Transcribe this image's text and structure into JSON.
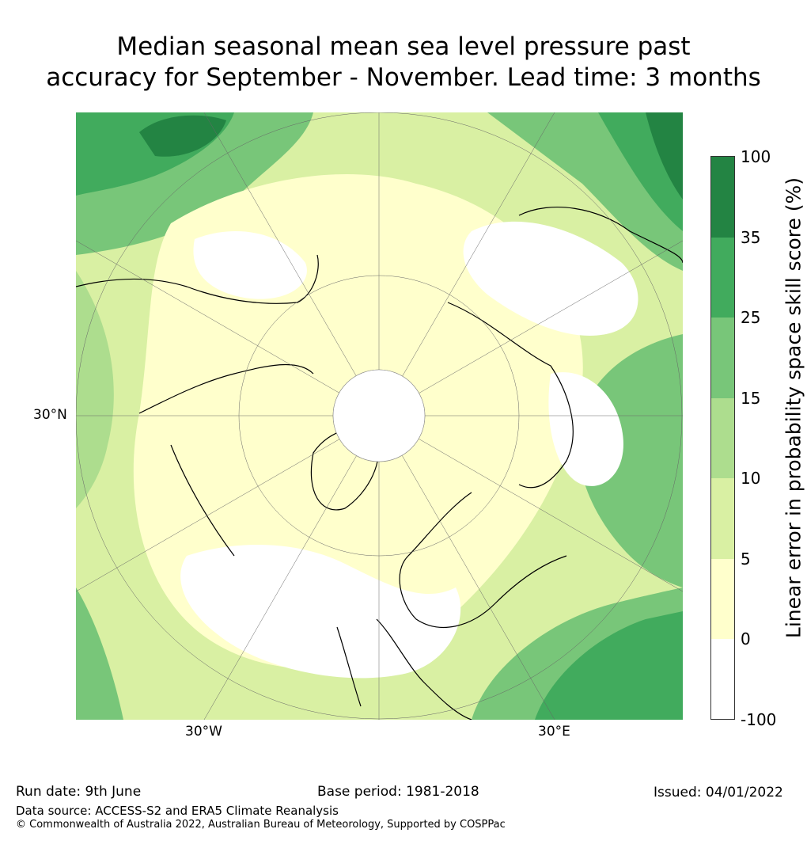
{
  "title_line1": "Median seasonal mean sea level pressure past",
  "title_line2": "accuracy for September - November. Lead time: 3 months",
  "map": {
    "lat_label": "30°N",
    "lon_labels": [
      "30°W",
      "30°E"
    ]
  },
  "colorbar": {
    "label": "Linear error in probability space skill score (%)",
    "ticks": [
      "100",
      "35",
      "25",
      "15",
      "10",
      "5",
      "0",
      "-100"
    ],
    "colors": [
      "#238443",
      "#41ab5d",
      "#78c679",
      "#addd8e",
      "#d9f0a3",
      "#ffffcc",
      "#ffffff"
    ]
  },
  "footer": {
    "run_date": "Run date: 9th June",
    "base_period": "Base period: 1981-2018",
    "issued": "Issued: 04/01/2022",
    "data_source": "Data source: ACCESS-S2 and ERA5 Climate Reanalysis",
    "copyright": "© Commonwealth of Australia 2022, Australian Bureau of Meteorology, Supported by COSPPac"
  }
}
